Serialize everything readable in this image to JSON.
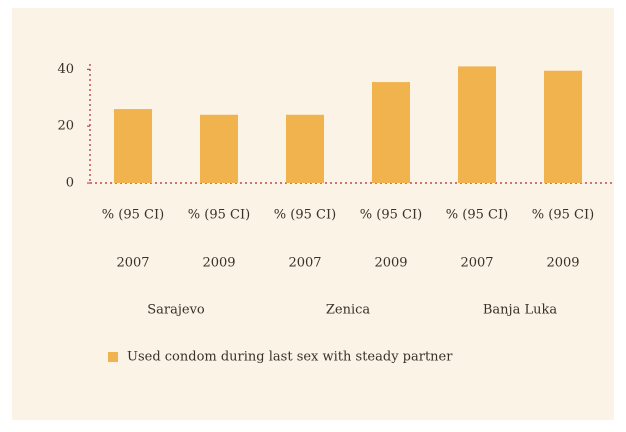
{
  "chart_data": {
    "type": "bar",
    "categories": [
      "% (95 CI)",
      "% (95 CI)",
      "% (95 CI)",
      "% (95 CI)",
      "% (95 CI)",
      "% (95 CI)"
    ],
    "years": [
      "2007",
      "2009",
      "2007",
      "2009",
      "2007",
      "2009"
    ],
    "groups": [
      "Sarajevo",
      "Zenica",
      "Banja Luka"
    ],
    "series": [
      {
        "name": "Used condom during last sex with steady partner",
        "color": "#f0b34e",
        "values": [
          26,
          24,
          24,
          35.5,
          41,
          39.5
        ]
      }
    ],
    "ylim": [
      0,
      42
    ],
    "yticks": [
      0,
      20,
      40
    ],
    "legend": "bottom"
  }
}
